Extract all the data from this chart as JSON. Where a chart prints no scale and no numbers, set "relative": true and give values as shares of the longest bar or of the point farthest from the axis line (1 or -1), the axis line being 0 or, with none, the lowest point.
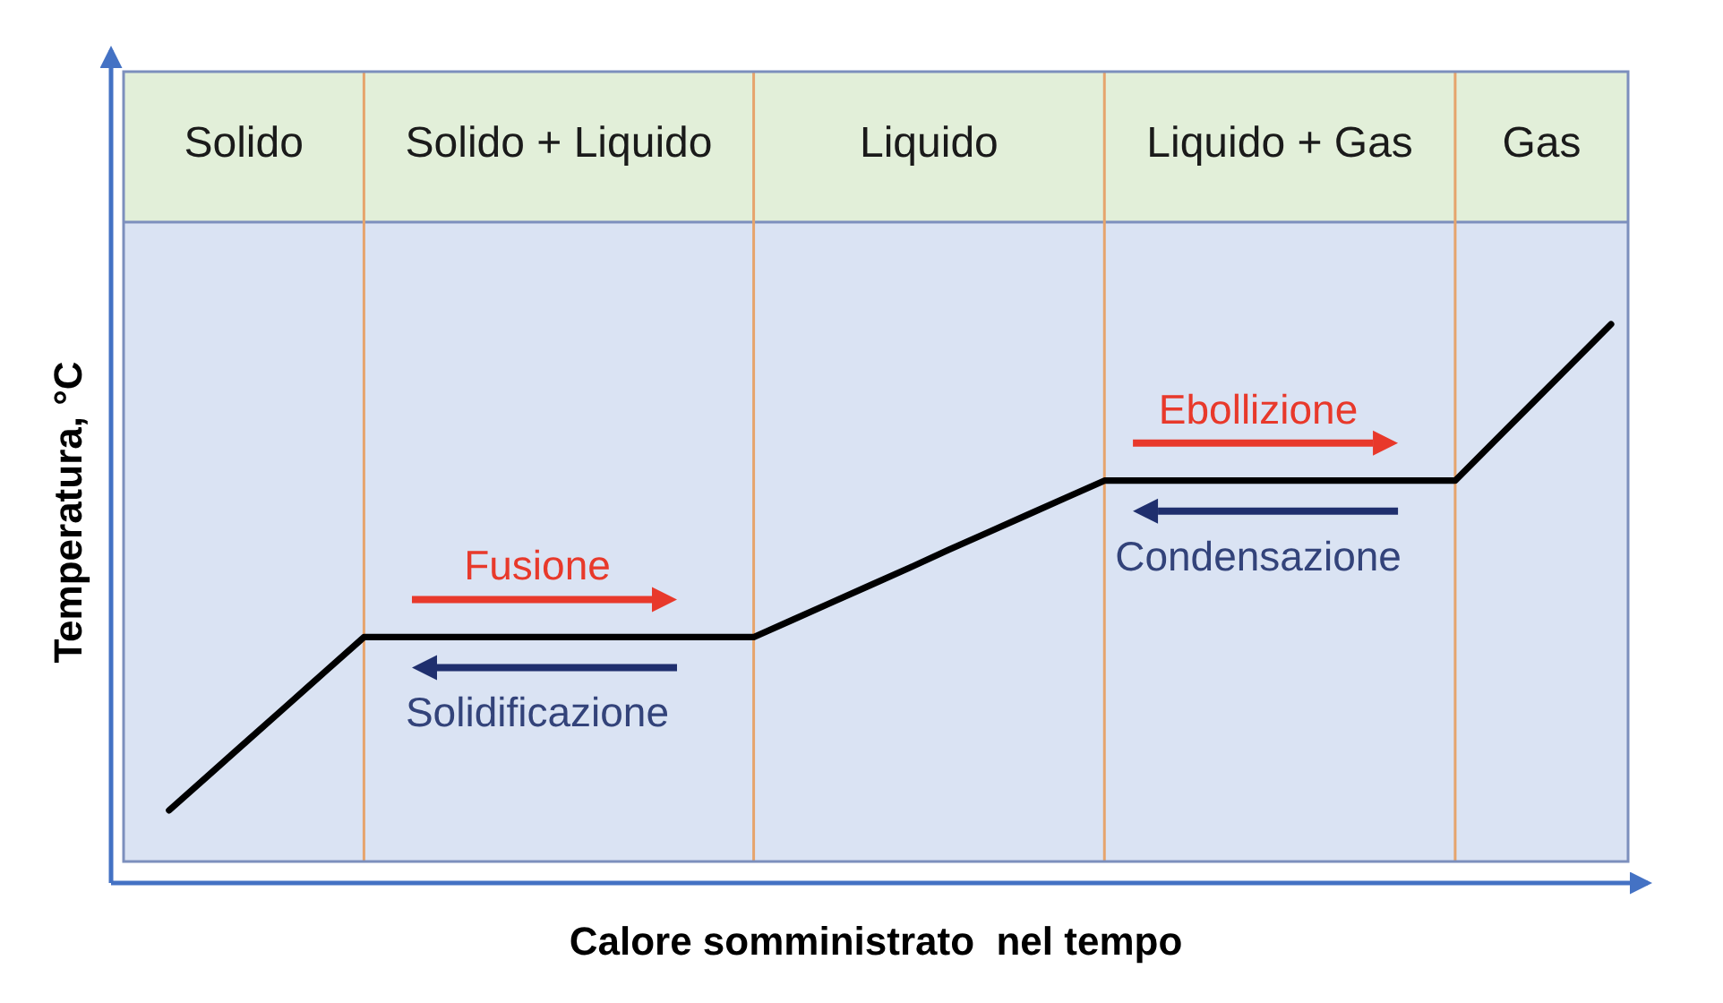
{
  "chart_data": {
    "type": "line",
    "relative": true,
    "grid": "x",
    "xlabel": "Calore somministrato  nel tempo",
    "ylabel": "Temperatura, °C",
    "categories": [
      null,
      null,
      null,
      null,
      null,
      null,
      null,
      null,
      null,
      null,
      null,
      null,
      null,
      null,
      null,
      null,
      null,
      null,
      null,
      null,
      null,
      null,
      null,
      null,
      null,
      null,
      null,
      null,
      null,
      null,
      null,
      null,
      null,
      null,
      null,
      null,
      null,
      null
    ],
    "series": [
      {
        "color": "#000000",
        "values": [
          0.13,
          0.192,
          0.254,
          0.316,
          0.378,
          0.44,
          0.44,
          0.44,
          0.44,
          0.44,
          0.44,
          0.44,
          0.44,
          0.44,
          0.44,
          0.44,
          0.471,
          0.502,
          0.533,
          0.564,
          0.596,
          0.627,
          0.658,
          0.689,
          0.72,
          0.72,
          0.72,
          0.72,
          0.72,
          0.72,
          0.72,
          0.72,
          0.72,
          0.72,
          0.79,
          0.86,
          0.93,
          1
        ]
      }
    ],
    "annotations": [
      "Solido",
      "Solido + Liquido",
      "Liquido",
      "Liquido + Gas",
      "Gas",
      "Fusione",
      "Solidificazione",
      "Ebollizione",
      "Condensazione"
    ]
  }
}
